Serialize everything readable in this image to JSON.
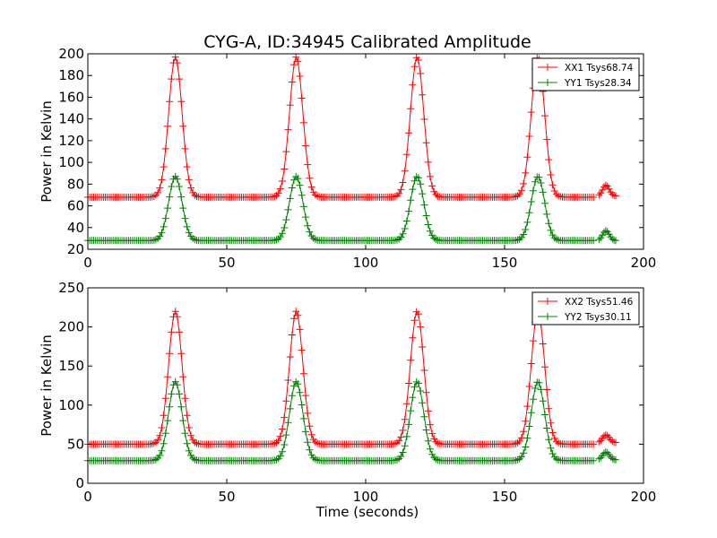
{
  "chart_data": [
    {
      "type": "line",
      "title": "CYG-A, ID:34945 Calibrated Amplitude",
      "xlabel": "",
      "ylabel": "Power in Kelvin",
      "xlim": [
        0,
        200
      ],
      "ylim": [
        20,
        200
      ],
      "xticks": [
        "0",
        "50",
        "100",
        "150",
        "200"
      ],
      "yticks": [
        "20",
        "40",
        "60",
        "80",
        "100",
        "120",
        "140",
        "160",
        "180",
        "200"
      ],
      "legend_position": "top-right",
      "peak_centers": [
        31.5,
        75,
        118.5,
        162
      ],
      "series": [
        {
          "name": "XX1 Tsys68.74",
          "color": "#ff0000",
          "baseline": 68,
          "peak": 197,
          "tail_baseline": 69,
          "tail_peak": 79
        },
        {
          "name": "YY1 Tsys28.34",
          "color": "#008000",
          "baseline": 28,
          "peak": 87,
          "tail_baseline": 28,
          "tail_peak": 37
        }
      ]
    },
    {
      "type": "line",
      "title": "",
      "xlabel": "Time (seconds)",
      "ylabel": "Power in Kelvin",
      "xlim": [
        0,
        200
      ],
      "ylim": [
        0,
        250
      ],
      "xticks": [
        "0",
        "50",
        "100",
        "150",
        "200"
      ],
      "yticks": [
        "0",
        "50",
        "100",
        "150",
        "200",
        "250"
      ],
      "legend_position": "top-right",
      "peak_centers": [
        31.5,
        75,
        118.5,
        162
      ],
      "series": [
        {
          "name": "XX2 Tsys51.46",
          "color": "#ff0000",
          "baseline": 50,
          "peak": 220,
          "tail_baseline": 52,
          "tail_peak": 62
        },
        {
          "name": "YY2 Tsys30.11",
          "color": "#008000",
          "baseline": 29,
          "peak": 130,
          "tail_baseline": 30,
          "tail_peak": 40
        }
      ]
    }
  ]
}
